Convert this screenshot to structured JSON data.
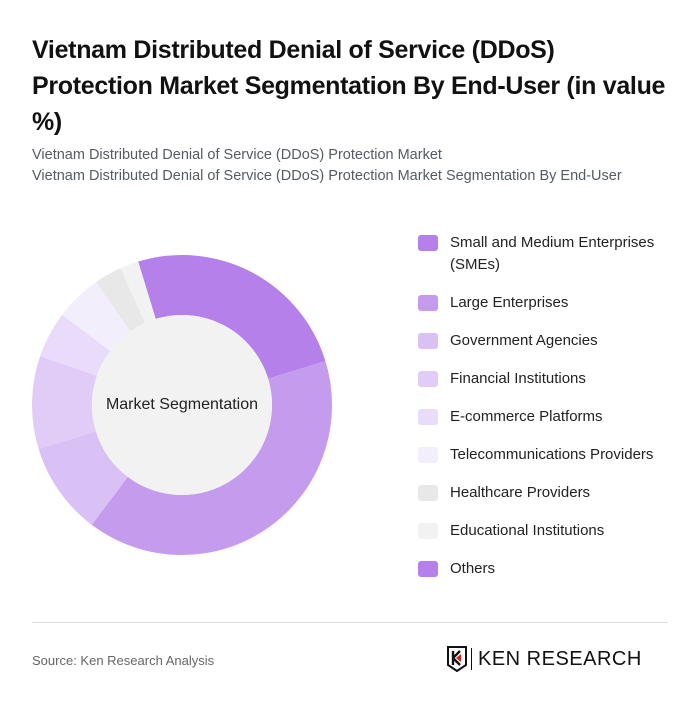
{
  "title": "Vietnam Distributed Denial of Service (DDoS) Protection Market Segmentation By End-User (in value %)",
  "subtitle_lines": [
    "Vietnam Distributed Denial of Service (DDoS) Protection Market",
    "Vietnam Distributed Denial of Service (DDoS) Protection Market Segmentation By End-User"
  ],
  "center_label": "Market Segmentation",
  "legend": [
    {
      "label": "Small and Medium Enterprises (SMEs)",
      "color": "#b580ea"
    },
    {
      "label": "Large Enterprises",
      "color": "#c59bee"
    },
    {
      "label": "Government Agencies",
      "color": "#d9c0f5"
    },
    {
      "label": "Financial Institutions",
      "color": "#e0ccf7"
    },
    {
      "label": "E-commerce Platforms",
      "color": "#e9dbfa"
    },
    {
      "label": "Telecommunications Providers",
      "color": "#f3eefc"
    },
    {
      "label": "Healthcare Providers",
      "color": "#e8e8e8"
    },
    {
      "label": "Educational Institutions",
      "color": "#f2f2f2"
    },
    {
      "label": "Others",
      "color": "#b580ea"
    }
  ],
  "source": "Source: Ken Research Analysis",
  "logo_text": "KEN RESEARCH",
  "chart_data": {
    "type": "pie",
    "variant": "donut",
    "title": "Vietnam Distributed Denial of Service (DDoS) Protection Market Segmentation By End-User (in value %)",
    "center_label": "Market Segmentation",
    "categories": [
      "Small and Medium Enterprises (SMEs)",
      "Large Enterprises",
      "Government Agencies",
      "Financial Institutions",
      "E-commerce Platforms",
      "Telecommunications Providers",
      "Healthcare Providers",
      "Educational Institutions",
      "Others"
    ],
    "values": [
      25,
      40,
      10,
      10,
      5,
      5,
      3,
      2,
      0
    ],
    "colors": [
      "#b580ea",
      "#c59bee",
      "#d9c0f5",
      "#e0ccf7",
      "#e9dbfa",
      "#f3eefc",
      "#e8e8e8",
      "#f2f2f2",
      "#b580ea"
    ],
    "start_angle_deg": -17,
    "legend_position": "right"
  }
}
